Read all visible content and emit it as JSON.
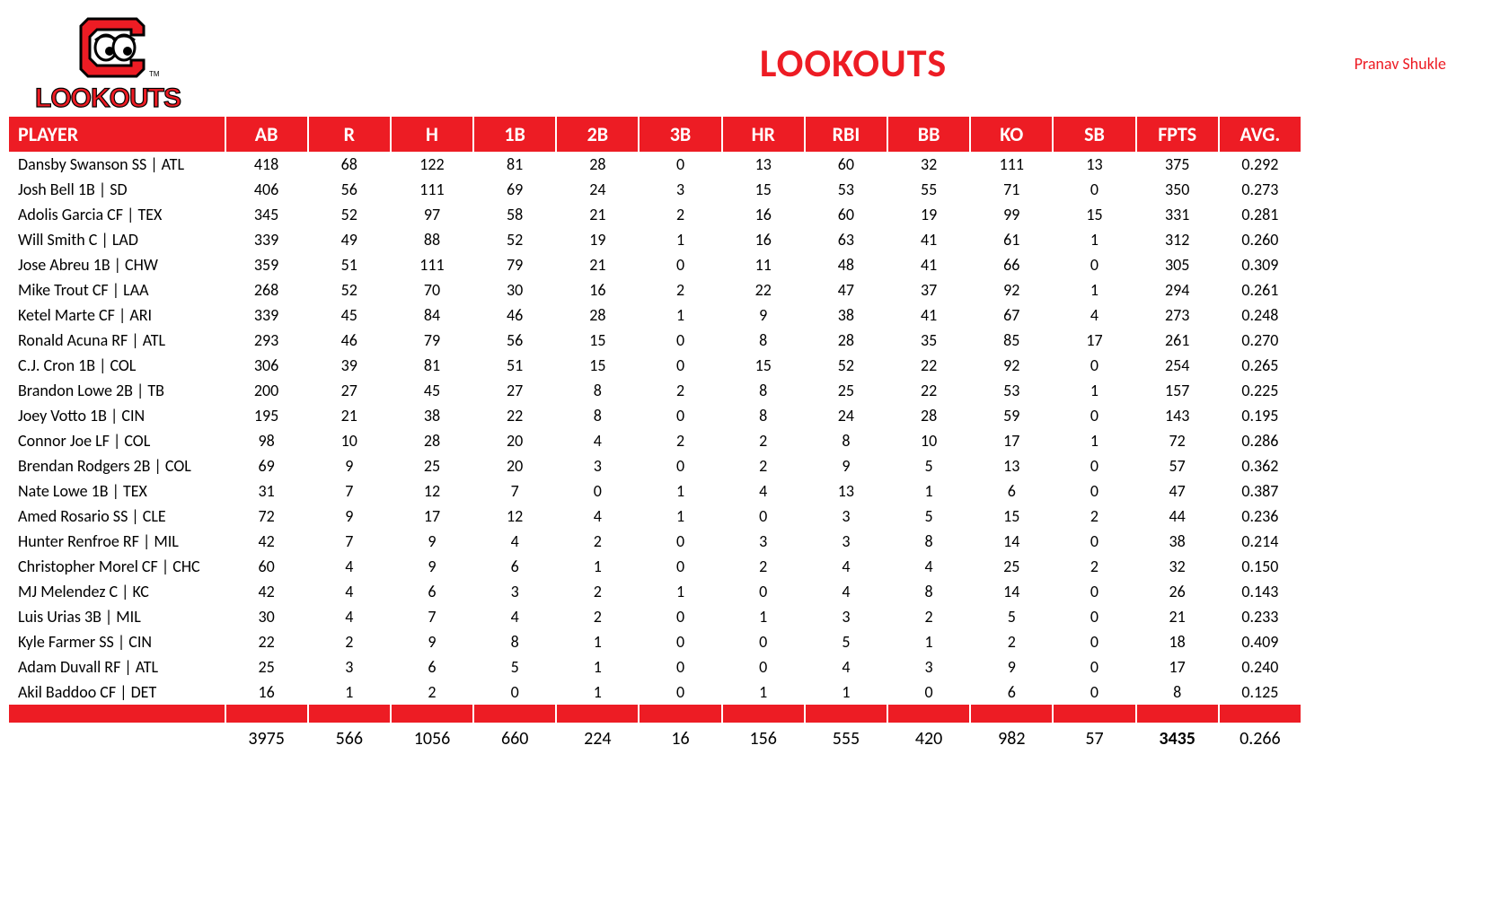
{
  "title": "LOOKOUTS",
  "owner": "Pranav Shukle",
  "logo": {
    "text_top_fill": "#ed1c24",
    "text_bottom": "LOOKOUTS",
    "accent": "#ed1c24",
    "yellow": "#fff200",
    "black": "#000000",
    "white": "#ffffff"
  },
  "colors": {
    "header_bg": "#ed1c24",
    "header_fg": "#ffffff",
    "text": "#000000",
    "title": "#ed1c24"
  },
  "columns": [
    "PLAYER",
    "AB",
    "R",
    "H",
    "1B",
    "2B",
    "3B",
    "HR",
    "RBI",
    "BB",
    "KO",
    "SB",
    "FPTS",
    "AVG."
  ],
  "rows": [
    {
      "player": "Dansby Swanson SS | ATL",
      "ab": "418",
      "r": "68",
      "h": "122",
      "b1": "81",
      "b2": "28",
      "b3": "0",
      "hr": "13",
      "rbi": "60",
      "bb": "32",
      "ko": "111",
      "sb": "13",
      "fpts": "375",
      "avg": "0.292"
    },
    {
      "player": "Josh Bell 1B | SD",
      "ab": "406",
      "r": "56",
      "h": "111",
      "b1": "69",
      "b2": "24",
      "b3": "3",
      "hr": "15",
      "rbi": "53",
      "bb": "55",
      "ko": "71",
      "sb": "0",
      "fpts": "350",
      "avg": "0.273"
    },
    {
      "player": "Adolis Garcia CF | TEX",
      "ab": "345",
      "r": "52",
      "h": "97",
      "b1": "58",
      "b2": "21",
      "b3": "2",
      "hr": "16",
      "rbi": "60",
      "bb": "19",
      "ko": "99",
      "sb": "15",
      "fpts": "331",
      "avg": "0.281"
    },
    {
      "player": "Will Smith C | LAD",
      "ab": "339",
      "r": "49",
      "h": "88",
      "b1": "52",
      "b2": "19",
      "b3": "1",
      "hr": "16",
      "rbi": "63",
      "bb": "41",
      "ko": "61",
      "sb": "1",
      "fpts": "312",
      "avg": "0.260"
    },
    {
      "player": "Jose Abreu 1B | CHW",
      "ab": "359",
      "r": "51",
      "h": "111",
      "b1": "79",
      "b2": "21",
      "b3": "0",
      "hr": "11",
      "rbi": "48",
      "bb": "41",
      "ko": "66",
      "sb": "0",
      "fpts": "305",
      "avg": "0.309"
    },
    {
      "player": "Mike Trout CF | LAA",
      "ab": "268",
      "r": "52",
      "h": "70",
      "b1": "30",
      "b2": "16",
      "b3": "2",
      "hr": "22",
      "rbi": "47",
      "bb": "37",
      "ko": "92",
      "sb": "1",
      "fpts": "294",
      "avg": "0.261"
    },
    {
      "player": "Ketel Marte CF | ARI",
      "ab": "339",
      "r": "45",
      "h": "84",
      "b1": "46",
      "b2": "28",
      "b3": "1",
      "hr": "9",
      "rbi": "38",
      "bb": "41",
      "ko": "67",
      "sb": "4",
      "fpts": "273",
      "avg": "0.248"
    },
    {
      "player": "Ronald Acuna RF | ATL",
      "ab": "293",
      "r": "46",
      "h": "79",
      "b1": "56",
      "b2": "15",
      "b3": "0",
      "hr": "8",
      "rbi": "28",
      "bb": "35",
      "ko": "85",
      "sb": "17",
      "fpts": "261",
      "avg": "0.270"
    },
    {
      "player": "C.J. Cron 1B | COL",
      "ab": "306",
      "r": "39",
      "h": "81",
      "b1": "51",
      "b2": "15",
      "b3": "0",
      "hr": "15",
      "rbi": "52",
      "bb": "22",
      "ko": "92",
      "sb": "0",
      "fpts": "254",
      "avg": "0.265"
    },
    {
      "player": "Brandon Lowe 2B | TB",
      "ab": "200",
      "r": "27",
      "h": "45",
      "b1": "27",
      "b2": "8",
      "b3": "2",
      "hr": "8",
      "rbi": "25",
      "bb": "22",
      "ko": "53",
      "sb": "1",
      "fpts": "157",
      "avg": "0.225"
    },
    {
      "player": "Joey Votto 1B | CIN",
      "ab": "195",
      "r": "21",
      "h": "38",
      "b1": "22",
      "b2": "8",
      "b3": "0",
      "hr": "8",
      "rbi": "24",
      "bb": "28",
      "ko": "59",
      "sb": "0",
      "fpts": "143",
      "avg": "0.195"
    },
    {
      "player": "Connor Joe LF | COL",
      "ab": "98",
      "r": "10",
      "h": "28",
      "b1": "20",
      "b2": "4",
      "b3": "2",
      "hr": "2",
      "rbi": "8",
      "bb": "10",
      "ko": "17",
      "sb": "1",
      "fpts": "72",
      "avg": "0.286"
    },
    {
      "player": "Brendan Rodgers 2B | COL",
      "ab": "69",
      "r": "9",
      "h": "25",
      "b1": "20",
      "b2": "3",
      "b3": "0",
      "hr": "2",
      "rbi": "9",
      "bb": "5",
      "ko": "13",
      "sb": "0",
      "fpts": "57",
      "avg": "0.362"
    },
    {
      "player": "Nate Lowe 1B | TEX",
      "ab": "31",
      "r": "7",
      "h": "12",
      "b1": "7",
      "b2": "0",
      "b3": "1",
      "hr": "4",
      "rbi": "13",
      "bb": "1",
      "ko": "6",
      "sb": "0",
      "fpts": "47",
      "avg": "0.387"
    },
    {
      "player": "Amed Rosario SS | CLE",
      "ab": "72",
      "r": "9",
      "h": "17",
      "b1": "12",
      "b2": "4",
      "b3": "1",
      "hr": "0",
      "rbi": "3",
      "bb": "5",
      "ko": "15",
      "sb": "2",
      "fpts": "44",
      "avg": "0.236"
    },
    {
      "player": "Hunter Renfroe RF | MIL",
      "ab": "42",
      "r": "7",
      "h": "9",
      "b1": "4",
      "b2": "2",
      "b3": "0",
      "hr": "3",
      "rbi": "3",
      "bb": "8",
      "ko": "14",
      "sb": "0",
      "fpts": "38",
      "avg": "0.214"
    },
    {
      "player": "Christopher Morel CF | CHC",
      "ab": "60",
      "r": "4",
      "h": "9",
      "b1": "6",
      "b2": "1",
      "b3": "0",
      "hr": "2",
      "rbi": "4",
      "bb": "4",
      "ko": "25",
      "sb": "2",
      "fpts": "32",
      "avg": "0.150"
    },
    {
      "player": "MJ Melendez C | KC",
      "ab": "42",
      "r": "4",
      "h": "6",
      "b1": "3",
      "b2": "2",
      "b3": "1",
      "hr": "0",
      "rbi": "4",
      "bb": "8",
      "ko": "14",
      "sb": "0",
      "fpts": "26",
      "avg": "0.143"
    },
    {
      "player": "Luis Urias 3B | MIL",
      "ab": "30",
      "r": "4",
      "h": "7",
      "b1": "4",
      "b2": "2",
      "b3": "0",
      "hr": "1",
      "rbi": "3",
      "bb": "2",
      "ko": "5",
      "sb": "0",
      "fpts": "21",
      "avg": "0.233"
    },
    {
      "player": "Kyle Farmer SS | CIN",
      "ab": "22",
      "r": "2",
      "h": "9",
      "b1": "8",
      "b2": "1",
      "b3": "0",
      "hr": "0",
      "rbi": "5",
      "bb": "1",
      "ko": "2",
      "sb": "0",
      "fpts": "18",
      "avg": "0.409"
    },
    {
      "player": "Adam Duvall RF | ATL",
      "ab": "25",
      "r": "3",
      "h": "6",
      "b1": "5",
      "b2": "1",
      "b3": "0",
      "hr": "0",
      "rbi": "4",
      "bb": "3",
      "ko": "9",
      "sb": "0",
      "fpts": "17",
      "avg": "0.240"
    },
    {
      "player": "Akil Baddoo CF | DET",
      "ab": "16",
      "r": "1",
      "h": "2",
      "b1": "0",
      "b2": "1",
      "b3": "0",
      "hr": "1",
      "rbi": "1",
      "bb": "0",
      "ko": "6",
      "sb": "0",
      "fpts": "8",
      "avg": "0.125"
    }
  ],
  "totals": {
    "player": "",
    "ab": "3975",
    "r": "566",
    "h": "1056",
    "b1": "660",
    "b2": "224",
    "b3": "16",
    "hr": "156",
    "rbi": "555",
    "bb": "420",
    "ko": "982",
    "sb": "57",
    "fpts": "3435",
    "avg": "0.266"
  }
}
